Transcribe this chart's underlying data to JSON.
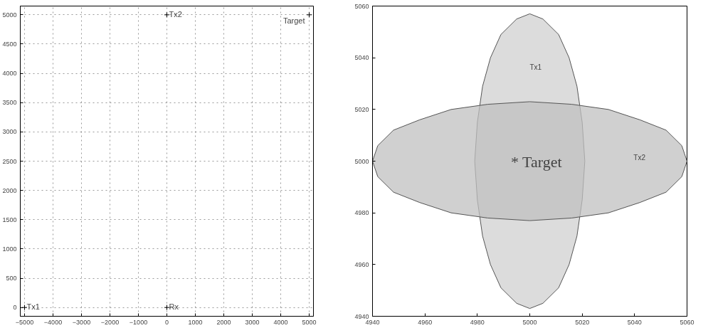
{
  "chart_data": [
    {
      "type": "scatter",
      "x": [
        -5000,
        0,
        5000,
        0
      ],
      "values": [
        0,
        5000,
        5000,
        0
      ],
      "color": "#000000",
      "marker": "cross",
      "xlim": [
        -5150,
        5150
      ],
      "ylim": [
        -150,
        5150
      ],
      "xticks": [
        -5000,
        -4000,
        -3000,
        -2000,
        -1000,
        0,
        1000,
        2000,
        3000,
        4000,
        5000
      ],
      "yticks": [
        0,
        500,
        1000,
        1500,
        2000,
        2500,
        3000,
        3500,
        4000,
        4500,
        5000
      ],
      "grid": true,
      "line_style": "dotted",
      "annotations": [
        {
          "text": "Tx1",
          "x": -5000,
          "y": 0
        },
        {
          "text": "Tx2",
          "x": 0,
          "y": 5000
        },
        {
          "text": "Target",
          "x": 5000,
          "y": 5000
        },
        {
          "text": "Rx",
          "x": 0,
          "y": 0
        }
      ]
    },
    {
      "type": "area",
      "xlim": [
        4940,
        5060
      ],
      "ylim": [
        4940,
        5060
      ],
      "xticks": [
        4940,
        4960,
        4980,
        5000,
        5020,
        5040,
        5060
      ],
      "yticks": [
        4940,
        4960,
        4980,
        5000,
        5020,
        5040,
        5060
      ],
      "grid": false,
      "series": [
        {
          "color": "#d0d0d0",
          "x": [
            5021,
            5020,
            5018,
            5015,
            5011,
            5005,
            5000,
            4995,
            4989,
            4985,
            4982,
            4980,
            4979,
            4980,
            4982,
            4985,
            4989,
            4995,
            5000,
            5005,
            5011,
            5015,
            5018,
            5020
          ],
          "values": [
            5000,
            5015,
            5029,
            5040,
            5049,
            5055,
            5057,
            5055,
            5049,
            5040,
            5029,
            5015,
            5000,
            4985,
            4971,
            4960,
            4951,
            4945,
            4943,
            4945,
            4951,
            4960,
            4971,
            4985
          ]
        },
        {
          "color": "#c0c0c0",
          "x": [
            5060,
            5058,
            5052,
            5042,
            5030,
            5016,
            5000,
            4984,
            4970,
            4958,
            4948,
            4942,
            4940,
            4942,
            4948,
            4958,
            4970,
            4984,
            5000,
            5016,
            5030,
            5042,
            5052,
            5058
          ],
          "values": [
            5000,
            5006,
            5012,
            5016,
            5020,
            5022,
            5023,
            5022,
            5020,
            5016,
            5012,
            5006,
            5000,
            4994,
            4988,
            4984,
            4980,
            4978,
            4977,
            4978,
            4980,
            4984,
            4988,
            4994
          ]
        }
      ],
      "annotations": [
        "Tx1",
        "Tx2",
        "* Target"
      ]
    }
  ]
}
